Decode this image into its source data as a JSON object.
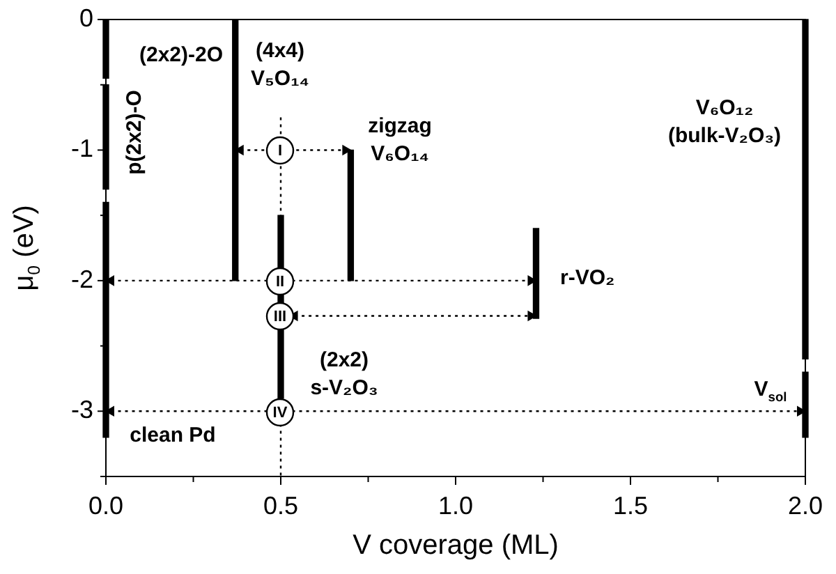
{
  "chart_data": {
    "type": "bar",
    "xlabel": "V coverage (ML)",
    "ylabel": "μ$_{0}$ (eV)",
    "xlim": [
      0,
      2
    ],
    "ylim": [
      -3.5,
      0
    ],
    "legend": false,
    "grid": false,
    "xticks": [
      {
        "value": 0,
        "label": "0.0"
      },
      {
        "value": 0.25,
        "label": null
      },
      {
        "value": 0.5,
        "label": "0.5"
      },
      {
        "value": 0.75,
        "label": null
      },
      {
        "value": 1,
        "label": "1.0"
      },
      {
        "value": 1.25,
        "label": null
      },
      {
        "value": 1.5,
        "label": "1.5"
      },
      {
        "value": 1.75,
        "label": null
      },
      {
        "value": 2,
        "label": "2.0"
      }
    ],
    "yticks": [
      {
        "value": -3.5,
        "label": null
      },
      -3,
      {
        "value": -2.5,
        "label": null
      },
      -2,
      {
        "value": -1.5,
        "label": null
      },
      -1,
      {
        "value": -0.5,
        "label": null
      },
      0
    ],
    "series": [
      {
        "color": "#000000",
        "x": [
          0,
          0.37,
          0.5,
          0.7,
          1.23,
          2
        ],
        "base": [
          0,
          0,
          -1.5,
          -1,
          -1.6,
          0
        ],
        "values": [
          -0.45,
          -2,
          -1.4,
          -1,
          -0.69,
          -2.6
        ]
      },
      {
        "color": "#000000",
        "x": [
          0,
          2
        ],
        "base": [
          -0.5,
          -2.7
        ],
        "values": [
          -0.8,
          -0.5
        ]
      },
      {
        "color": "#000000",
        "x": [
          0
        ],
        "base": [
          -1.4
        ],
        "values": [
          -1.8
        ]
      },
      {
        "type": "line",
        "color": "#000000",
        "line_style": "dotted",
        "marker": "none",
        "x": [
          0.5,
          0.5
        ],
        "values": [
          -0.75,
          -3.5
        ]
      },
      {
        "type": "line",
        "color": "#000000",
        "line_style": "dotted",
        "marker": "triangle",
        "x": [
          0.385,
          0.685
        ],
        "values": [
          -1,
          -1
        ]
      },
      {
        "type": "line",
        "color": "#000000",
        "line_style": "dotted",
        "marker": "triangle",
        "x": [
          0.015,
          1.215
        ],
        "values": [
          -2,
          -2
        ]
      },
      {
        "type": "line",
        "color": "#000000",
        "line_style": "dotted",
        "marker": "triangle",
        "x": [
          0.54,
          1.215
        ],
        "values": [
          -2.27,
          -2.27
        ]
      },
      {
        "type": "line",
        "color": "#000000",
        "line_style": "dotted",
        "marker": "triangle",
        "x": [
          0.015,
          1.985
        ],
        "values": [
          -3,
          -3
        ]
      }
    ],
    "annotations": [
      "I",
      "II",
      "III",
      "IV",
      "(2x2)-2O",
      "p(2x2)-O",
      "(4x4)",
      "V₅O₁₄",
      "zigzag",
      "V₆O₁₄",
      "r-VO₂",
      "V₆O₁₂",
      "(bulk-V₂O₃)",
      "(2x2)",
      "s-V₂O₃",
      "clean Pd",
      "V$_{sol}$"
    ]
  }
}
